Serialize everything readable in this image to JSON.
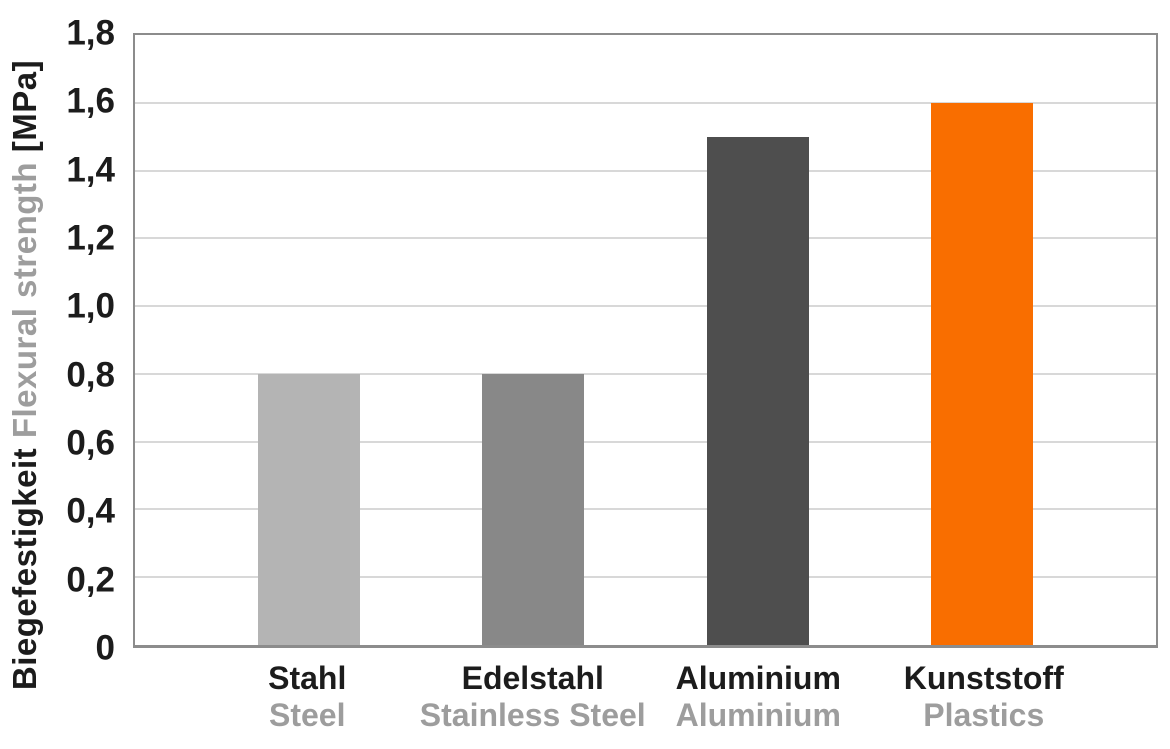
{
  "chart_data": {
    "type": "bar",
    "title": "",
    "ylabel_de": "Biegefestigkeit",
    "ylabel_en": "Flexural strength",
    "ylabel_unit": "[MPa]",
    "xlabel": "",
    "ylim": [
      0,
      1.8
    ],
    "grid": true,
    "legend": "none",
    "y_ticks": [
      {
        "value": 0,
        "label": "0"
      },
      {
        "value": 0.2,
        "label": "0,2"
      },
      {
        "value": 0.4,
        "label": "0,4"
      },
      {
        "value": 0.6,
        "label": "0,6"
      },
      {
        "value": 0.8,
        "label": "0,8"
      },
      {
        "value": 1.0,
        "label": "1,0"
      },
      {
        "value": 1.2,
        "label": "1,2"
      },
      {
        "value": 1.4,
        "label": "1,4"
      },
      {
        "value": 1.6,
        "label": "1,6"
      },
      {
        "value": 1.8,
        "label": "1,8"
      }
    ],
    "categories": [
      {
        "label_de": "Stahl",
        "label_en": "Steel",
        "value": 0.8,
        "color": "#b4b4b4"
      },
      {
        "label_de": "Edelstahl",
        "label_en": "Stainless Steel",
        "value": 0.8,
        "color": "#888888"
      },
      {
        "label_de": "Aluminium",
        "label_en": "Aluminium",
        "value": 1.5,
        "color": "#4e4e4e"
      },
      {
        "label_de": "Kunststoff",
        "label_en": "Plastics",
        "value": 1.6,
        "color": "#f96e00"
      }
    ],
    "layout": {
      "bar_centers_pct": [
        17,
        39,
        61,
        83
      ],
      "bar_width_pct": 10
    },
    "colors": {
      "text_dark": "#1c1c1c",
      "text_gray": "#9d9d9d",
      "gridline": "#d8d8d8",
      "frame": "#8c8c8c",
      "background": "#ffffff"
    }
  }
}
